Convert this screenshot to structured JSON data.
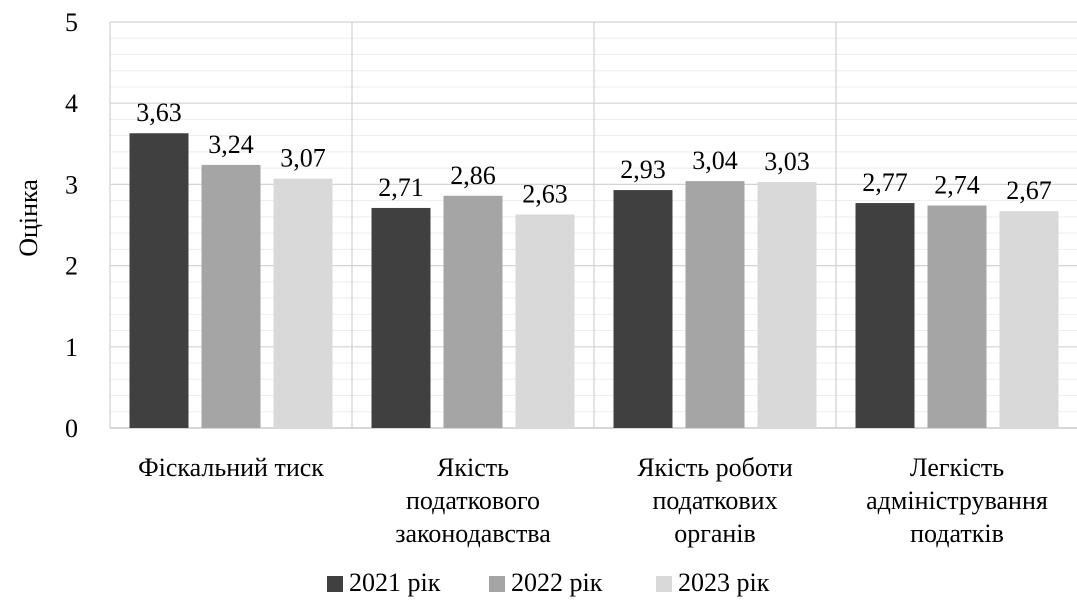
{
  "chart_data": {
    "type": "bar",
    "ylabel": "Оцінка",
    "ylim": [
      0,
      5
    ],
    "yticks": [
      0,
      1,
      2,
      3,
      4,
      5
    ],
    "minor_grid_step": 0.2,
    "grid": true,
    "legend_position": "bottom",
    "categories": [
      [
        "Фіскальний тиск"
      ],
      [
        "Якість",
        "податкового",
        "законодавства"
      ],
      [
        "Якість роботи",
        "податкових",
        "органів"
      ],
      [
        "Легкість",
        "адміністрування",
        "податків"
      ]
    ],
    "series": [
      {
        "name": "2021 рік",
        "color": "#404040",
        "values": [
          3.63,
          2.71,
          2.93,
          2.77
        ],
        "labels": [
          "3,63",
          "2,71",
          "2,93",
          "2,77"
        ]
      },
      {
        "name": "2022 рік",
        "color": "#a5a5a5",
        "values": [
          3.24,
          2.86,
          3.04,
          2.74
        ],
        "labels": [
          "3,24",
          "2,86",
          "3,04",
          "2,74"
        ]
      },
      {
        "name": "2023 рік",
        "color": "#d9d9d9",
        "values": [
          3.07,
          2.63,
          3.03,
          2.67
        ],
        "labels": [
          "3,07",
          "2,63",
          "3,03",
          "2,67"
        ]
      }
    ]
  }
}
